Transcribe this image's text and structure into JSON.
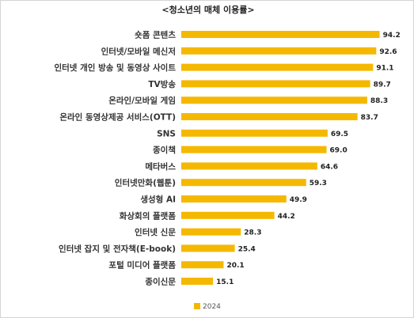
{
  "chart_data": {
    "type": "bar",
    "orientation": "horizontal",
    "title": "<청소년의 매체 이용률>",
    "categories": [
      "숏폼 콘텐츠",
      "인터넷/모바일 메신저",
      "인터넷 개인 방송 및 동영상 사이트",
      "TV방송",
      "온라인/모바일 게임",
      "온라인 동영상제공 서비스(OTT)",
      "SNS",
      "종이책",
      "메타버스",
      "인터넷만화(웹툰)",
      "생성형 AI",
      "화상회의 플랫폼",
      "인터넷 신문",
      "인터넷 잡지 및 전자책(E-book)",
      "포털 미디어 플랫폼",
      "종이신문"
    ],
    "series": [
      {
        "name": "2024",
        "color": "#F5B800",
        "values": [
          94.2,
          92.6,
          91.1,
          89.7,
          88.3,
          83.7,
          69.5,
          69.0,
          64.6,
          59.3,
          49.9,
          44.2,
          28.3,
          25.4,
          20.1,
          15.1
        ]
      }
    ],
    "xlim": [
      0,
      100
    ],
    "grid": false,
    "legend_position": "bottom"
  }
}
